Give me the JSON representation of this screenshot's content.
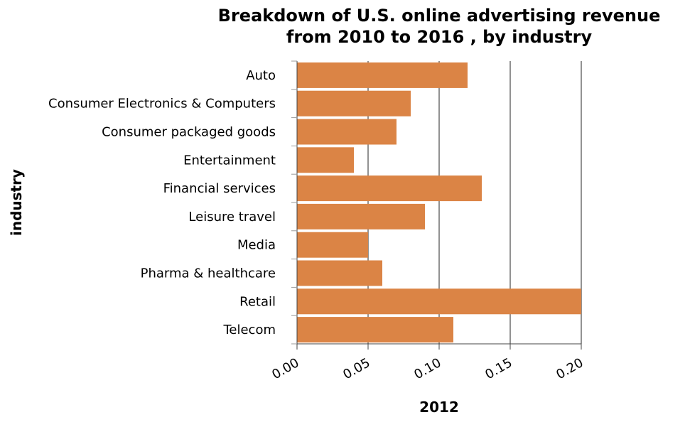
{
  "chart_data": {
    "type": "bar",
    "orientation": "horizontal",
    "title": "Breakdown of U.S. online advertising revenue from 2010 to 2016 , by industry",
    "title_lines": [
      "Breakdown of U.S. online advertising revenue",
      "from 2010 to 2016 , by industry"
    ],
    "xlabel": "2012",
    "ylabel": "industry",
    "categories": [
      "Auto",
      "Consumer Electronics & Computers",
      "Consumer packaged goods",
      "Entertainment",
      "Financial services",
      "Leisure travel",
      "Media",
      "Pharma & healthcare",
      "Retail",
      "Telecom"
    ],
    "values": [
      0.12,
      0.08,
      0.07,
      0.04,
      0.13,
      0.09,
      0.05,
      0.06,
      0.2,
      0.11
    ],
    "xlim": [
      0,
      0.2
    ],
    "xticks": [
      0,
      0.05,
      0.1,
      0.15,
      0.2
    ],
    "xtick_labels": [
      "0.00",
      "0.05",
      "0.10",
      "0.15",
      "0.20"
    ],
    "grid": "vertical",
    "legend": "none",
    "bar_color": "#db8445",
    "grid_color": "#6e6e6e"
  }
}
